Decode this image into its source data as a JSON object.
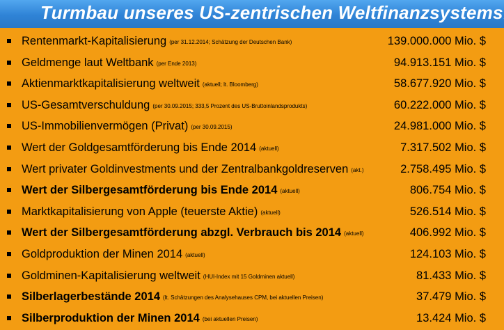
{
  "header": {
    "title": "Turmbau unseres US-zentrischen Weltfinanzsystems:"
  },
  "colors": {
    "background": "#f39c12",
    "title_bar": "#3a8fe0",
    "title_text": "#ffffff",
    "text": "#000000"
  },
  "rows": [
    {
      "label": "Rentenmarkt-Kapitalisierung",
      "note": "(per 31.12.2014; Schätzung der Deutschen Bank)",
      "value": "139.000.000 Mio. $",
      "bold": false
    },
    {
      "label": "Geldmenge laut Weltbank",
      "note": "(per Ende 2013)",
      "value": "94.913.151 Mio. $",
      "bold": false
    },
    {
      "label": "Aktienmarktkapitalisierung weltweit",
      "note": "(aktuell; lt. Bloomberg)",
      "value": "58.677.920 Mio. $",
      "bold": false
    },
    {
      "label": "US-Gesamtverschuldung",
      "note": "(per 30.09.2015; 333,5 Prozent des US-Bruttoinlandsprodukts)",
      "value": "60.222.000 Mio. $",
      "bold": false
    },
    {
      "label": "US-Immobilienvermögen (Privat)",
      "note": "(per 30.09.2015)",
      "value": "24.981.000 Mio. $",
      "bold": false
    },
    {
      "label": "Wert der Goldgesamtförderung bis Ende 2014",
      "note": "(aktuell)",
      "value": "7.317.502 Mio. $",
      "bold": false
    },
    {
      "label": "Wert privater Goldinvestments und der Zentralbankgoldreserven",
      "note": "(akt.)",
      "value": "2.758.495 Mio. $",
      "bold": false
    },
    {
      "label": "Wert der Silbergesamtförderung bis Ende 2014",
      "note": "(aktuell)",
      "value": "806.754 Mio. $",
      "bold": true
    },
    {
      "label": "Marktkapitalisierung von Apple (teuerste Aktie)",
      "note": "(aktuell)",
      "value": "526.514 Mio. $",
      "bold": false
    },
    {
      "label": "Wert der Silbergesamtförderung abzgl. Verbrauch bis 2014",
      "note": "(aktuell)",
      "value": "406.992 Mio. $",
      "bold": true
    },
    {
      "label": "Goldproduktion der Minen 2014",
      "note": "(aktuell)",
      "value": "124.103 Mio. $",
      "bold": false
    },
    {
      "label": "Goldminen-Kapitalisierung weltweit",
      "note": "(HUI-Index mit 15 Goldminen aktuell)",
      "value": "81.433 Mio. $",
      "bold": false
    },
    {
      "label": "Silberlagerbestände 2014",
      "note": "(lt. Schätzungen des Analysehauses CPM, bei aktuellen Preisen)",
      "value": "37.479 Mio. $",
      "bold": true
    },
    {
      "label": "Silberproduktion der Minen 2014",
      "note": "(bei aktuellen Preisen)",
      "value": "13.424 Mio. $",
      "bold": true
    }
  ]
}
